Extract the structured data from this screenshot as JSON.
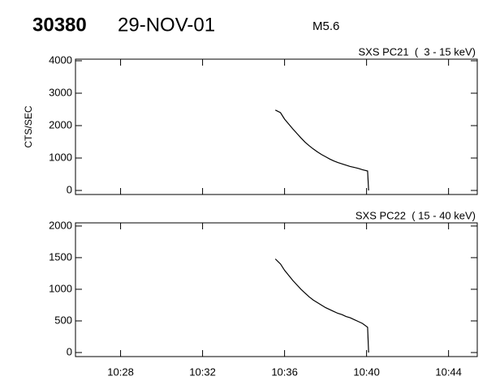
{
  "header": {
    "event": "30380",
    "date": "29-NOV-01",
    "class": "M5.6"
  },
  "chart_data": [
    {
      "type": "line",
      "title": "SXS PC21  (  3 - 15 keV)",
      "y_label": "CTS/SEC",
      "x": [
        635.55,
        635.8,
        636.0,
        636.2,
        636.4,
        636.6,
        636.8,
        637.0,
        637.2,
        637.4,
        637.6,
        637.8,
        638.0,
        638.2,
        638.4,
        638.6,
        638.8,
        639.0,
        639.2,
        639.4,
        639.6,
        639.8,
        640.05,
        640.1
      ],
      "series": [
        {
          "color": "#000000",
          "values": [
            2480,
            2400,
            2200,
            2050,
            1900,
            1760,
            1620,
            1490,
            1380,
            1280,
            1190,
            1110,
            1040,
            970,
            910,
            860,
            820,
            780,
            740,
            710,
            680,
            640,
            600,
            0
          ]
        }
      ],
      "xlim": [
        625.8,
        645.4
      ],
      "xticks": [
        628,
        632,
        636,
        640,
        644
      ],
      "ylim": [
        -125,
        4050
      ],
      "yticks": [
        0,
        1000,
        2000,
        3000,
        4000
      ]
    },
    {
      "type": "line",
      "title": "SXS PC22  ( 15 - 40 keV)",
      "x": [
        635.55,
        635.8,
        636.0,
        636.2,
        636.4,
        636.6,
        636.8,
        637.0,
        637.2,
        637.4,
        637.6,
        637.8,
        638.0,
        638.2,
        638.4,
        638.6,
        638.8,
        639.0,
        639.2,
        639.4,
        639.6,
        639.8,
        640.05,
        640.1
      ],
      "series": [
        {
          "color": "#000000",
          "values": [
            1480,
            1400,
            1300,
            1220,
            1140,
            1070,
            1000,
            940,
            880,
            830,
            790,
            750,
            710,
            680,
            650,
            620,
            600,
            570,
            550,
            520,
            490,
            460,
            400,
            0
          ]
        }
      ],
      "xlim": [
        625.8,
        645.4
      ],
      "xticks": [
        {
          "value": 628,
          "label": "10:28"
        },
        {
          "value": 632,
          "label": "10:32"
        },
        {
          "value": 636,
          "label": "10:36"
        },
        {
          "value": 640,
          "label": "10:40"
        },
        {
          "value": 644,
          "label": "10:44"
        }
      ],
      "ylim": [
        -64,
        2050
      ],
      "yticks": [
        0,
        500,
        1000,
        1500,
        2000
      ]
    }
  ]
}
